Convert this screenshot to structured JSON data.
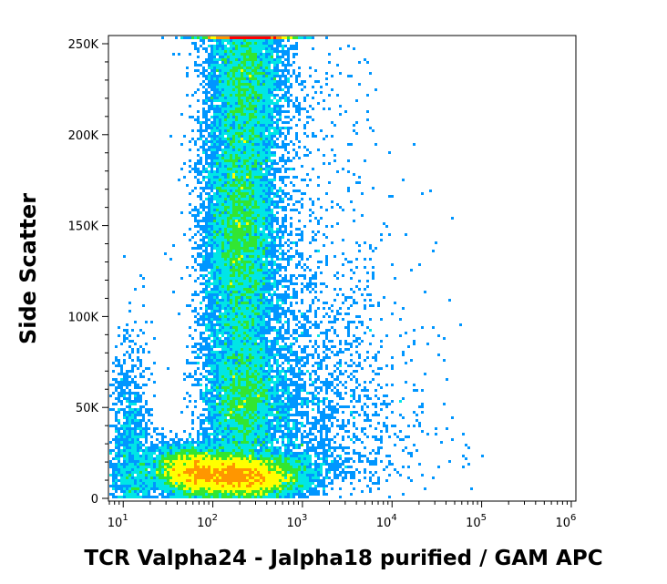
{
  "chart_data": {
    "type": "scatter",
    "subtype": "flow-cytometry-density-plot",
    "xlabel": "TCR Valpha24 - Jalpha18 purified / GAM APC",
    "ylabel": "Side Scatter",
    "x_scale": "log",
    "xlim": [
      7,
      1100000
    ],
    "ylim": [
      -1000,
      254000
    ],
    "x_ticks": [
      {
        "base": "10",
        "exp": "1",
        "value": 10
      },
      {
        "base": "10",
        "exp": "2",
        "value": 100
      },
      {
        "base": "10",
        "exp": "3",
        "value": 1000
      },
      {
        "base": "10",
        "exp": "4",
        "value": 10000
      },
      {
        "base": "10",
        "exp": "5",
        "value": 100000
      },
      {
        "base": "10",
        "exp": "6",
        "value": 1000000
      }
    ],
    "y_ticks": [
      {
        "label": "0",
        "value": 0
      },
      {
        "label": "50K",
        "value": 50000
      },
      {
        "label": "100K",
        "value": 100000
      },
      {
        "label": "150K",
        "value": 150000
      },
      {
        "label": "200K",
        "value": 200000
      },
      {
        "label": "250K",
        "value": 250000
      }
    ],
    "color_scale": [
      "#0000c8",
      "#0096ff",
      "#00e6e6",
      "#32e632",
      "#ffff00",
      "#ff9600",
      "#ff0000"
    ],
    "populations": [
      {
        "x_center": 220,
        "y_center": 12000,
        "x_spread_decades": 0.35,
        "y_spread": 6000,
        "density": "very high"
      },
      {
        "x_center": 60,
        "y_center": 15000,
        "x_spread_decades": 0.25,
        "y_spread": 7000,
        "density": "high"
      },
      {
        "x_center": 200,
        "y_center": 145000,
        "x_spread_decades": 0.2,
        "y_spread": 35000,
        "density": "high"
      },
      {
        "x_center": 230,
        "y_center": 55000,
        "x_spread_decades": 0.22,
        "y_spread": 14000,
        "density": "medium"
      },
      {
        "x_center": 250,
        "y_center": 230000,
        "x_spread_decades": 0.2,
        "y_spread": 20000,
        "density": "medium"
      }
    ],
    "grid": false,
    "legend": "none"
  }
}
